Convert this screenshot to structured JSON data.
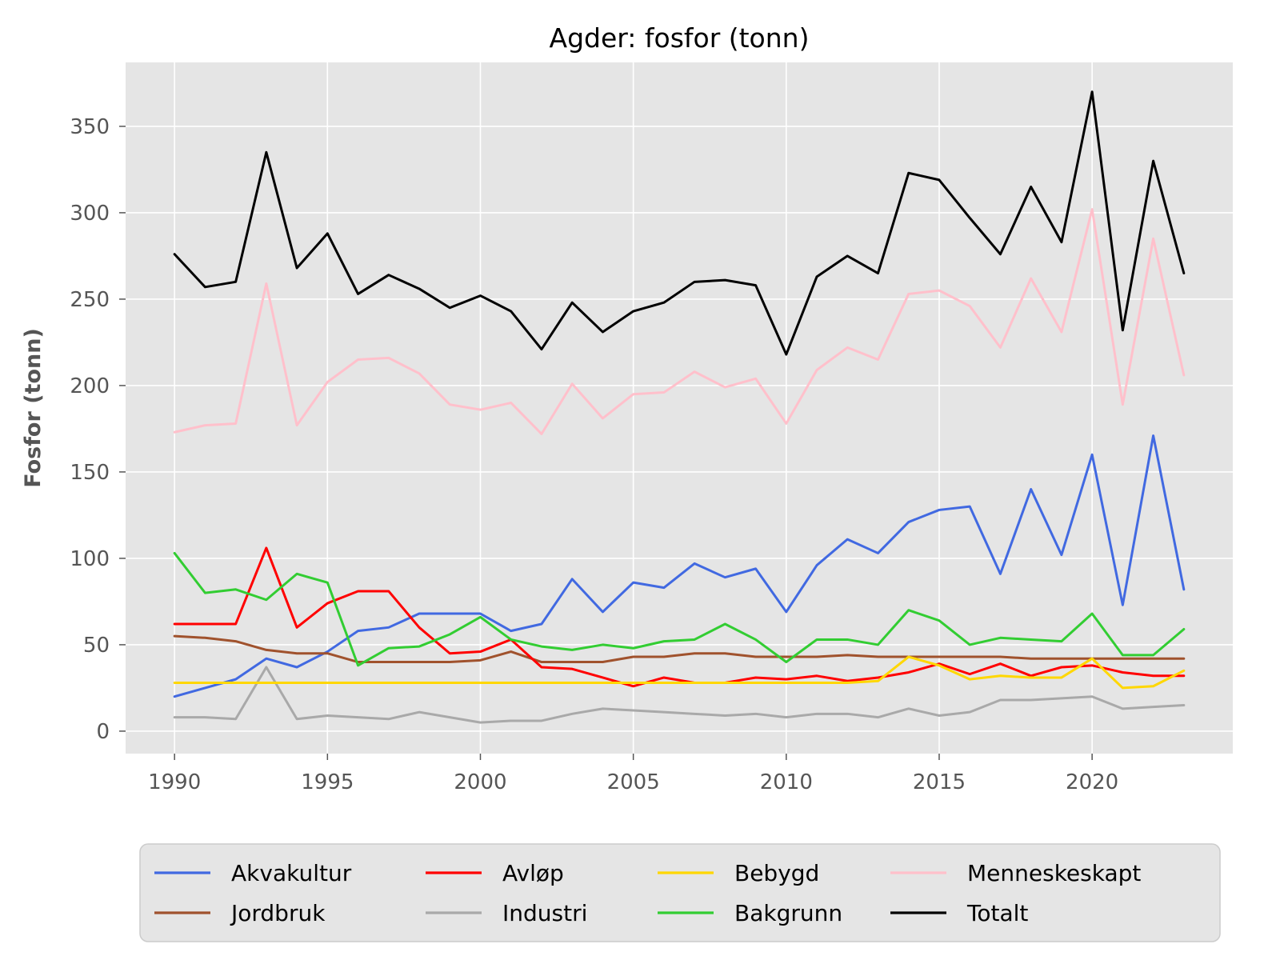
{
  "chart_data": {
    "type": "line",
    "title": "Agder: fosfor (tonn)",
    "xlabel": "",
    "ylabel": "Fosfor (tonn)",
    "xlim": [
      1988.4,
      2024.6
    ],
    "ylim": [
      -13,
      387
    ],
    "x_ticks": [
      1990,
      1995,
      2000,
      2005,
      2010,
      2015,
      2020
    ],
    "y_ticks": [
      0,
      50,
      100,
      150,
      200,
      250,
      300,
      350
    ],
    "grid": true,
    "legend_position": "bottom",
    "x": [
      1990,
      1991,
      1992,
      1993,
      1994,
      1995,
      1996,
      1997,
      1998,
      1999,
      2000,
      2001,
      2002,
      2003,
      2004,
      2005,
      2006,
      2007,
      2008,
      2009,
      2010,
      2011,
      2012,
      2013,
      2014,
      2015,
      2016,
      2017,
      2018,
      2019,
      2020,
      2021,
      2022,
      2023
    ],
    "series": [
      {
        "name": "Akvakultur",
        "color": "#4169E1",
        "values": [
          20,
          25,
          30,
          42,
          37,
          46,
          58,
          60,
          68,
          68,
          68,
          58,
          62,
          88,
          69,
          86,
          83,
          97,
          89,
          94,
          69,
          96,
          111,
          103,
          121,
          128,
          130,
          91,
          140,
          102,
          160,
          73,
          171,
          82
        ]
      },
      {
        "name": "Jordbruk",
        "color": "#A0522D",
        "values": [
          55,
          54,
          52,
          47,
          45,
          45,
          40,
          40,
          40,
          40,
          41,
          46,
          40,
          40,
          40,
          43,
          43,
          45,
          45,
          43,
          43,
          43,
          44,
          43,
          43,
          43,
          43,
          43,
          42,
          42,
          42,
          42,
          42,
          42
        ]
      },
      {
        "name": "Avløp",
        "color": "#FF0000",
        "values": [
          62,
          62,
          62,
          106,
          60,
          74,
          81,
          81,
          60,
          45,
          46,
          53,
          37,
          36,
          31,
          26,
          31,
          28,
          28,
          31,
          30,
          32,
          29,
          31,
          34,
          39,
          33,
          39,
          32,
          37,
          38,
          34,
          32,
          32
        ]
      },
      {
        "name": "Industri",
        "color": "#A9A9A9",
        "values": [
          8,
          8,
          7,
          37,
          7,
          9,
          8,
          7,
          11,
          8,
          5,
          6,
          6,
          10,
          13,
          12,
          11,
          10,
          9,
          10,
          8,
          10,
          10,
          8,
          13,
          9,
          11,
          18,
          18,
          19,
          20,
          13,
          14,
          15
        ]
      },
      {
        "name": "Bebygd",
        "color": "#FFD700",
        "values": [
          28,
          28,
          28,
          28,
          28,
          28,
          28,
          28,
          28,
          28,
          28,
          28,
          28,
          28,
          28,
          28,
          28,
          28,
          28,
          28,
          28,
          28,
          28,
          29,
          43,
          38,
          30,
          32,
          31,
          31,
          42,
          25,
          26,
          35
        ]
      },
      {
        "name": "Bakgrunn",
        "color": "#32CD32",
        "values": [
          103,
          80,
          82,
          76,
          91,
          86,
          38,
          48,
          49,
          56,
          66,
          53,
          49,
          47,
          50,
          48,
          52,
          53,
          62,
          53,
          40,
          53,
          53,
          50,
          70,
          64,
          50,
          54,
          53,
          52,
          68,
          44,
          44,
          59
        ]
      },
      {
        "name": "Menneskeskapt",
        "color": "#FFC0CB",
        "values": [
          173,
          177,
          178,
          259,
          177,
          202,
          215,
          216,
          207,
          189,
          186,
          190,
          172,
          201,
          181,
          195,
          196,
          208,
          199,
          204,
          178,
          209,
          222,
          215,
          253,
          255,
          246,
          222,
          262,
          231,
          302,
          189,
          285,
          206
        ]
      },
      {
        "name": "Totalt",
        "color": "#000000",
        "values": [
          276,
          257,
          260,
          335,
          268,
          288,
          253,
          264,
          256,
          245,
          252,
          243,
          221,
          248,
          231,
          243,
          248,
          260,
          261,
          258,
          218,
          263,
          275,
          265,
          323,
          319,
          297,
          276,
          315,
          283,
          370,
          232,
          330,
          265
        ]
      }
    ],
    "legend_order": [
      "Akvakultur",
      "Avløp",
      "Bebygd",
      "Menneskeskapt",
      "Jordbruk",
      "Industri",
      "Bakgrunn",
      "Totalt"
    ],
    "colors": {
      "plot_background": "#E5E5E5",
      "grid": "#FFFFFF",
      "legend_background": "#E5E5E5",
      "legend_border": "#CCCCCC"
    }
  }
}
